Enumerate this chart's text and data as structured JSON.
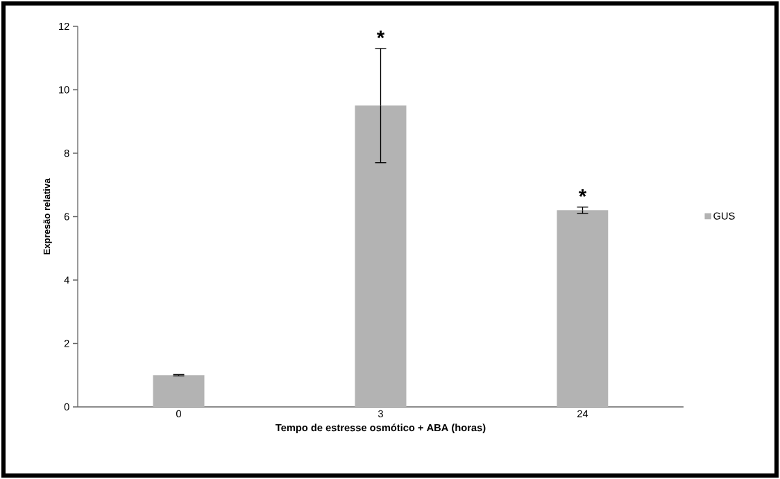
{
  "chart_data": {
    "type": "bar",
    "xlabel": "Tempo de estresse osmótico + ABA (horas)",
    "ylabel": "Expresão relativa",
    "categories": [
      "0",
      "3",
      "24"
    ],
    "series": [
      {
        "name": "GUS",
        "color": "#b3b3b3",
        "values": [
          1.0,
          9.5,
          6.2
        ],
        "errors": [
          0.02,
          1.8,
          0.1
        ]
      }
    ],
    "ylim": [
      0,
      12
    ],
    "yticks": [
      0,
      2,
      4,
      6,
      8,
      10,
      12
    ],
    "grid": false,
    "legend": "right",
    "annotations": [
      {
        "text": "*",
        "x": "3",
        "y": 11.3
      },
      {
        "text": "*",
        "x": "24",
        "y": 6.3
      }
    ]
  }
}
